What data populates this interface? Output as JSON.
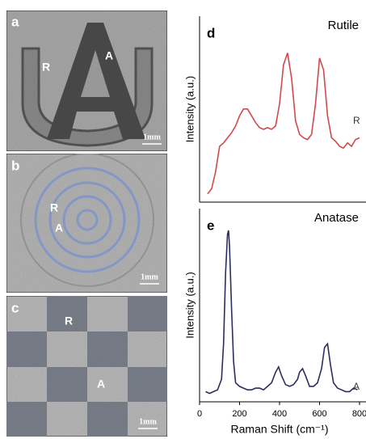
{
  "panels": [
    {
      "label": "a",
      "annotations": [
        "R",
        "A"
      ],
      "scale_bar": "1mm"
    },
    {
      "label": "b",
      "annotations": [
        "R",
        "A"
      ],
      "scale_bar": "1mm"
    },
    {
      "label": "c",
      "annotations": [
        "R",
        "A"
      ],
      "scale_bar": "1mm"
    }
  ],
  "chart_data": [
    {
      "type": "line",
      "panel_label": "d",
      "title": "Rutile",
      "y_label": "Intensity (a.u.)",
      "annotation": "R",
      "color": "#d0494c",
      "xlim": [
        0,
        800
      ],
      "ylim": [
        0,
        100
      ],
      "x": [
        40,
        60,
        80,
        100,
        120,
        140,
        160,
        180,
        200,
        220,
        240,
        260,
        280,
        300,
        320,
        340,
        360,
        380,
        400,
        420,
        440,
        460,
        480,
        500,
        520,
        540,
        560,
        580,
        600,
        620,
        640,
        660,
        680,
        700,
        720,
        740,
        760,
        780,
        800
      ],
      "values": [
        2,
        5,
        15,
        30,
        32,
        35,
        38,
        42,
        48,
        52,
        52,
        48,
        44,
        41,
        40,
        41,
        40,
        42,
        55,
        78,
        85,
        70,
        45,
        37,
        35,
        34,
        37,
        55,
        82,
        75,
        48,
        35,
        33,
        30,
        29,
        32,
        30,
        34,
        35
      ]
    },
    {
      "type": "line",
      "panel_label": "e",
      "title": "Anatase",
      "y_label": "Intensity (a.u.)",
      "x_label": "Raman Shift (cm⁻¹)",
      "annotation": "A",
      "color": "#2b2f5e",
      "xlim": [
        0,
        800
      ],
      "ylim": [
        0,
        100
      ],
      "xticks": [
        0,
        200,
        400,
        600,
        800
      ],
      "x": [
        30,
        50,
        70,
        90,
        110,
        120,
        130,
        140,
        145,
        150,
        160,
        170,
        180,
        200,
        220,
        240,
        260,
        280,
        300,
        320,
        340,
        360,
        380,
        395,
        410,
        430,
        450,
        470,
        490,
        500,
        515,
        530,
        550,
        570,
        590,
        610,
        625,
        640,
        655,
        670,
        690,
        710,
        730,
        750,
        770,
        790
      ],
      "values": [
        3,
        2,
        3,
        4,
        10,
        30,
        70,
        92,
        94,
        85,
        50,
        20,
        8,
        6,
        5,
        4,
        4,
        5,
        5,
        4,
        6,
        8,
        14,
        17,
        12,
        7,
        6,
        7,
        10,
        14,
        16,
        12,
        6,
        6,
        8,
        16,
        28,
        30,
        18,
        8,
        5,
        4,
        3,
        3,
        5,
        4
      ]
    }
  ]
}
